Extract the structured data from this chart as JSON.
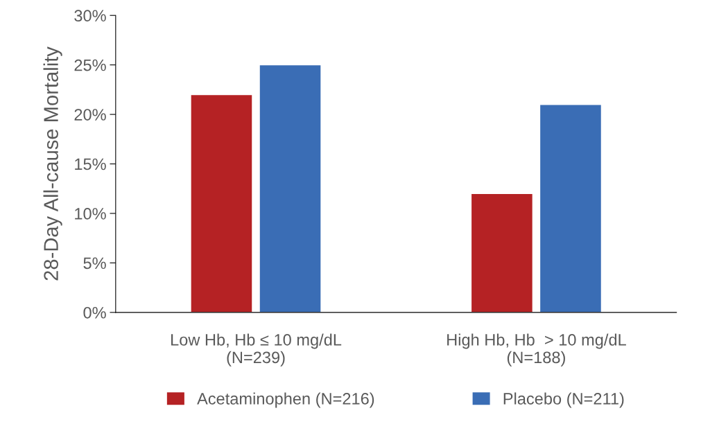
{
  "chart_data": {
    "type": "bar",
    "ylabel": "28-Day All-cause Mortality",
    "categories": [
      "Low Hb, Hb ≤ 10 mg/dL\n(N=239)",
      "High Hb, Hb  > 10 mg/dL\n(N=188)"
    ],
    "series": [
      {
        "name": "Acetaminophen (N=216)",
        "color": "#b52224",
        "values": [
          22,
          12
        ]
      },
      {
        "name": "Placebo (N=211)",
        "color": "#3a6db5",
        "values": [
          25,
          21
        ]
      }
    ],
    "ylim": [
      0,
      30
    ],
    "yticks": [
      {
        "value": 0,
        "label": "0%"
      },
      {
        "value": 5,
        "label": "5%"
      },
      {
        "value": 10,
        "label": "10%"
      },
      {
        "value": 15,
        "label": "15%"
      },
      {
        "value": 20,
        "label": "20%"
      },
      {
        "value": 25,
        "label": "25%"
      },
      {
        "value": 30,
        "label": "30%"
      }
    ],
    "grid": false,
    "legend": "bottom"
  }
}
